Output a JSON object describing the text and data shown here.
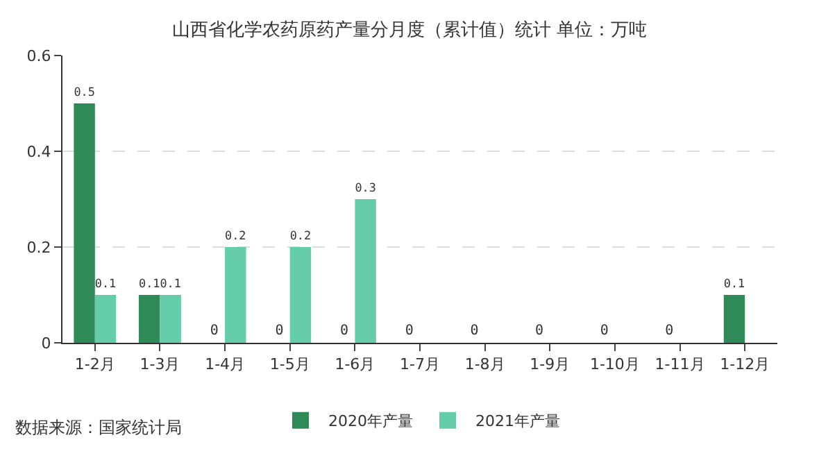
{
  "chart_data": {
    "type": "bar",
    "title": "山西省化学农药原药产量分月度（累计值）统计 单位：万吨",
    "categories": [
      "1-2月",
      "1-3月",
      "1-4月",
      "1-5月",
      "1-6月",
      "1-7月",
      "1-8月",
      "1-9月",
      "1-10月",
      "1-11月",
      "1-12月"
    ],
    "series": [
      {
        "name": "2020年产量",
        "color": "#2e8b57",
        "values": [
          0.5,
          0.1,
          0,
          0,
          0,
          0,
          0,
          0,
          0,
          0,
          0.1
        ]
      },
      {
        "name": "2021年产量",
        "color": "#66cdaa",
        "values": [
          0.1,
          0.1,
          0.2,
          0.2,
          0.3,
          null,
          null,
          null,
          null,
          null,
          null
        ]
      }
    ],
    "ylim": [
      0,
      0.6
    ],
    "yticks": [
      0,
      0.2,
      0.4,
      0.6
    ],
    "grid": "y",
    "legend": "bottom",
    "data_labels": true,
    "annotations": [
      "数据来源：国家统计局"
    ]
  }
}
